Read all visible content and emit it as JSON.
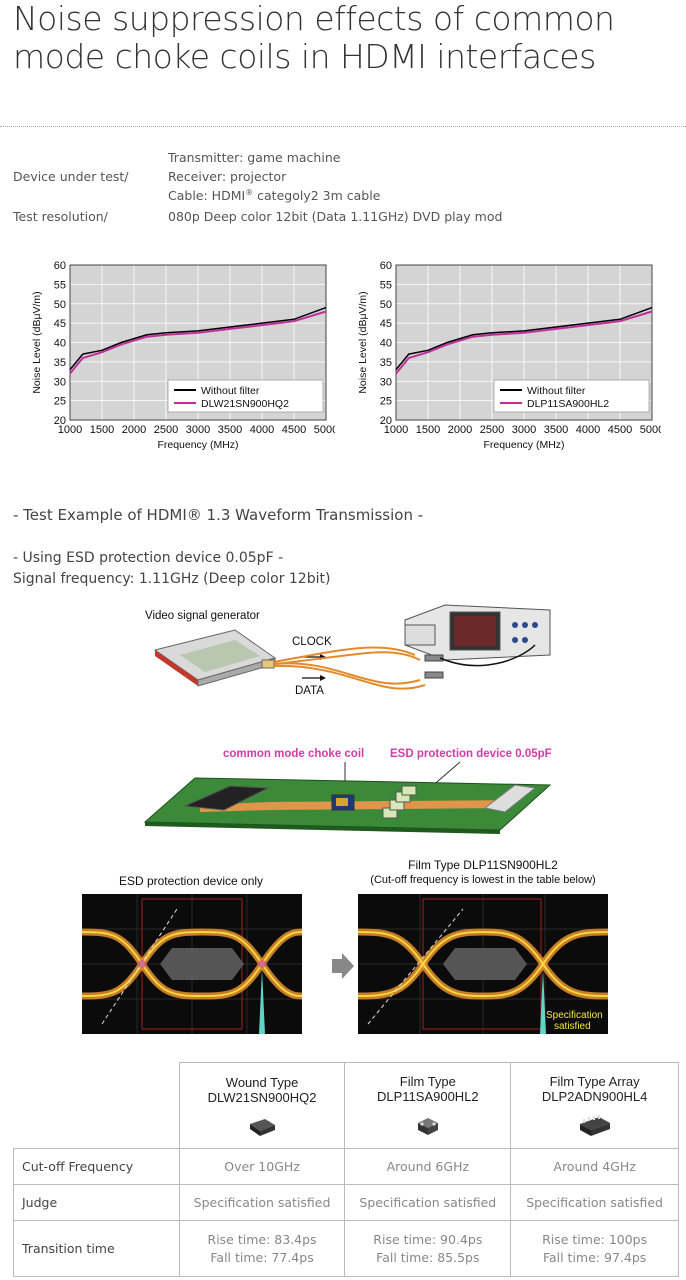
{
  "page": {
    "title": "Noise suppression effects of common mode choke coils in HDMI interfaces"
  },
  "test_conditions": {
    "device_label": "Device under test/",
    "transmitter": "Transmitter: game machine",
    "receiver": "Receiver: projector",
    "cable_prefix": "Cable: HDMI",
    "cable_reg": "®",
    "cable_suffix": " categoly2 3m cable",
    "resolution_label": "Test resolution/",
    "resolution_value": "080p Deep color 12bit (Data 1.11GHz) DVD play mod"
  },
  "chart_data": [
    {
      "type": "line",
      "xlabel": "Frequency (MHz)",
      "ylabel": "Noise Level (dBμV/m)",
      "xlim": [
        1000,
        5000
      ],
      "ylim": [
        20,
        60
      ],
      "xticks": [
        "1000",
        "1500",
        "2000",
        "2500",
        "3000",
        "3500",
        "4000",
        "4500",
        "5000"
      ],
      "yticks": [
        "20",
        "25",
        "30",
        "35",
        "40",
        "45",
        "50",
        "55",
        "60"
      ],
      "legend_position": "bottom-right",
      "grid": true,
      "series": [
        {
          "name": "Without filter",
          "color": "#000000",
          "x": [
            1000,
            1200,
            1500,
            1800,
            2000,
            2200,
            2500,
            3000,
            3500,
            4000,
            4500,
            5000
          ],
          "y": [
            33,
            37,
            38,
            40,
            41,
            42,
            42.5,
            43,
            44,
            45,
            46,
            49
          ]
        },
        {
          "name": "DLW21SN900HQ2",
          "color": "#c0309a",
          "x": [
            1000,
            1200,
            1500,
            1800,
            2000,
            2200,
            2500,
            3000,
            3500,
            4000,
            4500,
            5000
          ],
          "y": [
            32,
            36,
            37.5,
            39.5,
            40.5,
            41.5,
            42,
            42.5,
            43.5,
            44.5,
            45.5,
            48
          ]
        }
      ]
    },
    {
      "type": "line",
      "xlabel": "Frequency (MHz)",
      "ylabel": "Noise Level (dBμV/m)",
      "xlim": [
        1000,
        5000
      ],
      "ylim": [
        20,
        60
      ],
      "xticks": [
        "1000",
        "1500",
        "2000",
        "2500",
        "3000",
        "3500",
        "4000",
        "4500",
        "5000"
      ],
      "yticks": [
        "20",
        "25",
        "30",
        "35",
        "40",
        "45",
        "50",
        "55",
        "60"
      ],
      "legend_position": "bottom-right",
      "grid": true,
      "series": [
        {
          "name": "Without filter",
          "color": "#000000",
          "x": [
            1000,
            1200,
            1500,
            1800,
            2000,
            2200,
            2500,
            3000,
            3500,
            4000,
            4500,
            5000
          ],
          "y": [
            33,
            37,
            38,
            40,
            41,
            42,
            42.5,
            43,
            44,
            45,
            46,
            49
          ]
        },
        {
          "name": "DLP11SA900HL2",
          "color": "#c0309a",
          "x": [
            1000,
            1200,
            1500,
            1800,
            2000,
            2200,
            2500,
            3000,
            3500,
            4000,
            4500,
            5000
          ],
          "y": [
            32,
            36,
            37.5,
            39.5,
            40.5,
            41.5,
            42,
            42.5,
            43.5,
            44.5,
            45.5,
            48
          ]
        }
      ]
    }
  ],
  "section2": {
    "heading": "- Test Example of HDMI® 1.3 Waveform Transmission -",
    "subheading": "- Using ESD protection device 0.05pF -",
    "signal_freq": "Signal frequency: 1.11GHz (Deep color 12bit)"
  },
  "setup_diagram": {
    "generator_label": "Video signal generator",
    "clock_label": "CLOCK",
    "data_label": "DATA"
  },
  "board_diagram": {
    "choke_label": "common mode choke coil",
    "esd_label": "ESD protection device 0.05pF",
    "label_color": "#d63aa8"
  },
  "eye_diagrams": {
    "left_title": "ESD protection device only",
    "right_title_1": "Film Type DLP11SN900HL2",
    "right_title_2": "(Cut-off frequency is lowest in the table below)",
    "spec_note_1": "Specification",
    "spec_note_2": "satisfied"
  },
  "comparison_table": {
    "columns": [
      {
        "type": "Wound Type",
        "part": "DLW21SN900HQ2",
        "chip_icon": "wound-chip-icon"
      },
      {
        "type": "Film Type",
        "part": "DLP11SA900HL2",
        "chip_icon": "film-chip-icon"
      },
      {
        "type": "Film Type Array",
        "part": "DLP2ADN900HL4",
        "chip_icon": "array-chip-icon"
      }
    ],
    "rows": [
      {
        "label": "Cut-off Frequency",
        "values": [
          "Over 10GHz",
          "Around 6GHz",
          "Around 4GHz"
        ]
      },
      {
        "label": "Judge",
        "values": [
          "Specification satisfied",
          "Specification satisfied",
          "Specification satisfied"
        ]
      },
      {
        "label": "Transition time",
        "values": [
          [
            "Rise time: 83.4ps",
            "Fall time: 77.4ps"
          ],
          [
            "Rise time: 90.4ps",
            "Fall time: 85.5ps"
          ],
          [
            "Rise time: 100ps",
            "Fall time: 97.4ps"
          ]
        ]
      }
    ]
  }
}
